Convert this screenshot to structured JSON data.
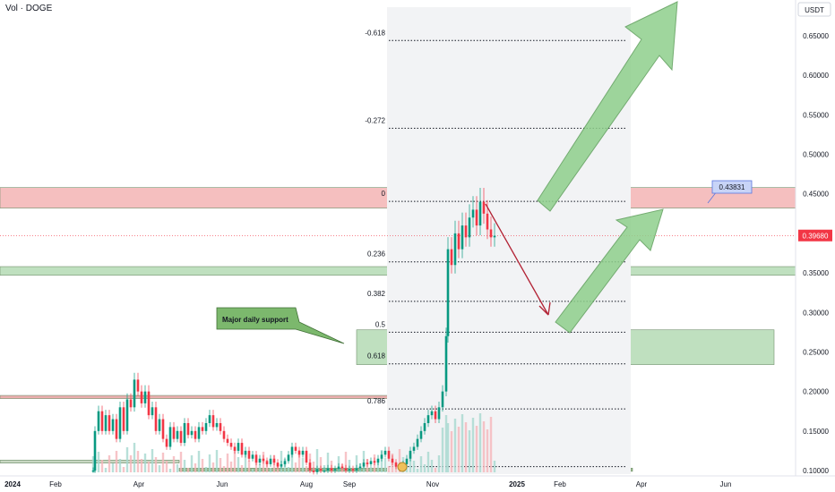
{
  "header": {
    "title": "Vol · DOGE"
  },
  "chart_data": {
    "type": "candlestick",
    "currency": "USDT",
    "y_ticks": [
      "0.65000",
      "0.60000",
      "0.55000",
      "0.50000",
      "0.45000",
      "0.40000",
      "0.35000",
      "0.30000",
      "0.25000",
      "0.20000",
      "0.15000",
      "0.10000"
    ],
    "y_tick_values": [
      0.65,
      0.6,
      0.55,
      0.5,
      0.45,
      0.4,
      0.35,
      0.3,
      0.25,
      0.2,
      0.15,
      0.1
    ],
    "ylim": [
      0.095,
      0.695
    ],
    "x_ticks": [
      "2024",
      "Feb",
      "Apr",
      "Jun",
      "Aug",
      "Sep",
      "Nov",
      "2025",
      "Feb",
      "Apr",
      "Jun"
    ],
    "current_price": "0.39680",
    "current_price_value": 0.3968,
    "target_label": "0.43831",
    "target_value": 0.43831,
    "fib_levels": [
      {
        "label": "-0.618",
        "value": 0.644
      },
      {
        "label": "-0.272",
        "value": 0.533
      },
      {
        "label": "0",
        "value": 0.4405
      },
      {
        "label": "0.236",
        "value": 0.364
      },
      {
        "label": "0.382",
        "value": 0.314
      },
      {
        "label": "0.5",
        "value": 0.275
      },
      {
        "label": "0.618",
        "value": 0.235
      },
      {
        "label": "0.786",
        "value": 0.178
      }
    ],
    "zones": [
      {
        "name": "resistance",
        "low": 0.432,
        "high": 0.458,
        "color": "#f4b4b4"
      },
      {
        "name": "support-high",
        "low": 0.347,
        "high": 0.358,
        "color": "#b5dbb4"
      },
      {
        "name": "support-daily",
        "low": 0.234,
        "high": 0.278,
        "color": "#b5dbb4"
      },
      {
        "name": "old-resistance",
        "low": 0.191,
        "high": 0.195,
        "color": "#e8a0a0"
      },
      {
        "name": "base",
        "low": 0.099,
        "high": 0.103,
        "color": "#7fa56f"
      }
    ],
    "annotation": "Major daily support",
    "colors": {
      "up": "#089981",
      "down": "#f23645",
      "zone_red": "#f4b4b4",
      "zone_green": "#b5dbb4",
      "arrow_green": "#7cc47c",
      "arrow_red": "#b22234"
    }
  }
}
